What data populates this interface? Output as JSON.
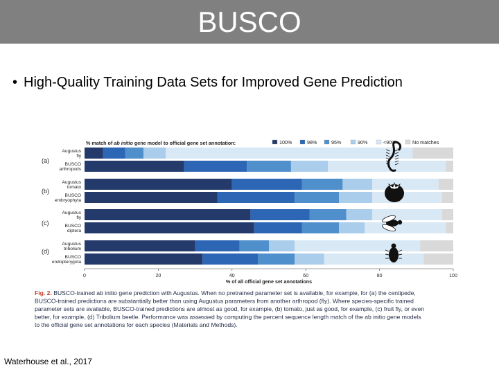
{
  "slide": {
    "title": "BUSCO",
    "bullet": "High-Quality Training Data Sets for Improved Gene Prediction",
    "citation": "Waterhouse et al., 2017"
  },
  "colors": {
    "title_bar": "#808080",
    "s100": "#243a6b",
    "s98": "#2c66b5",
    "s95": "#4f8fcb",
    "s90": "#a9cdea",
    "lt90": "#d8e8f5",
    "none": "#d9d9d9",
    "caption_label": "#c23a2a",
    "caption_text": "#1f2a44"
  },
  "chart_data": {
    "type": "bar",
    "orientation": "horizontal",
    "stacked": true,
    "title_parts": [
      "% match of ",
      "ab initio",
      " gene model to official gene set annotation:"
    ],
    "xlabel": "% of all official gene set annotations",
    "xlim": [
      0,
      100
    ],
    "xticks": [
      0,
      20,
      40,
      60,
      80,
      100
    ],
    "legend": [
      {
        "key": "s100",
        "label": "100%"
      },
      {
        "key": "s98",
        "label": "98%"
      },
      {
        "key": "s95",
        "label": "95%"
      },
      {
        "key": "s90",
        "label": "90%"
      },
      {
        "key": "lt90",
        "label": "<90%"
      },
      {
        "key": "none",
        "label": "No matches"
      }
    ],
    "legend_position": "top",
    "groups": [
      {
        "label": "(a)",
        "icon": "centipede-icon",
        "bars": [
          {
            "label": [
              "Augustus",
              "fly"
            ],
            "values": [
              5,
              6,
              5,
              6,
              67,
              11
            ]
          },
          {
            "label": [
              "BUSCO",
              "arthropods"
            ],
            "values": [
              27,
              17,
              12,
              10,
              32,
              2
            ]
          }
        ]
      },
      {
        "label": "(b)",
        "icon": "tomato-icon",
        "bars": [
          {
            "label": [
              "Augustus",
              "tomato"
            ],
            "values": [
              40,
              19,
              11,
              8,
              18,
              4
            ]
          },
          {
            "label": [
              "BUSCO",
              "embryophyta"
            ],
            "values": [
              36,
              21,
              12,
              9,
              19,
              3
            ]
          }
        ]
      },
      {
        "label": "(c)",
        "icon": "fly-icon",
        "bars": [
          {
            "label": [
              "Augustus",
              "fly"
            ],
            "values": [
              45,
              16,
              10,
              7,
              19,
              3
            ]
          },
          {
            "label": [
              "BUSCO",
              "diptera"
            ],
            "values": [
              46,
              13,
              10,
              7,
              22,
              2
            ]
          }
        ]
      },
      {
        "label": "(d)",
        "icon": "beetle-icon",
        "bars": [
          {
            "label": [
              "Augustus",
              "tribolium"
            ],
            "values": [
              30,
              12,
              8,
              7,
              34,
              9
            ]
          },
          {
            "label": [
              "BUSCO",
              "endopterygota"
            ],
            "values": [
              32,
              15,
              10,
              8,
              27,
              8
            ]
          }
        ]
      }
    ],
    "caption": {
      "label": "Fig. 2.",
      "lines": [
        "BUSCO-trained ab initio gene prediction with Augustus. When no pretrained parameter set is available, for example, for (a) the centipede,",
        "BUSCO-trained predictions are substantially better than using Augustus parameters from another arthropod (fly). Where species-specific trained",
        "parameter sets are available, BUSCO-trained predictions are almost as good, for example, (b) tomato, just as good, for example, (c) fruit fly, or even",
        "better, for example, (d) Tribolium beetle. Performance was assessed by computing the percent sequence length match of the ab initio gene models",
        "to the official gene set annotations for each species (Materials and Methods)."
      ]
    }
  }
}
